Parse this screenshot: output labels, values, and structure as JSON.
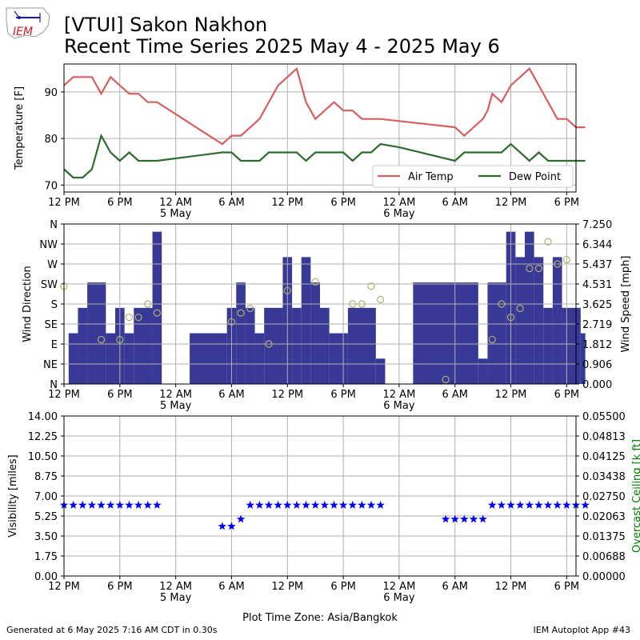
{
  "header": {
    "logo_text": "IEM",
    "title_line1": "[VTUI] Sakon Nakhon",
    "title_line2": "Recent Time Series 2025 May 4 - 2025 May 6"
  },
  "footer": {
    "generated": "Generated at 6 May 2025 7:16 AM CDT in 0.30s",
    "app": "IEM Autoplot App #43"
  },
  "colors": {
    "air_temp": "#d65f5f",
    "dew_point": "#2e6b2e",
    "wind_speed_bar": "#383896",
    "wind_dir_marker": "#b0b070",
    "visibility_marker": "#0000ff",
    "ceiling_axis": "#008000",
    "grid": "#b0b0b0"
  },
  "chart_data": [
    {
      "type": "line",
      "id": "temperature",
      "xlabel": "",
      "ylabel": "Temperature [F]",
      "x_tick_labels": [
        "12 PM",
        "6 PM",
        "12 AM",
        "6 AM",
        "12 PM",
        "6 PM",
        "12 AM",
        "6 AM",
        "12 PM",
        "6 PM"
      ],
      "x_date_labels": [
        {
          "tick": "12 AM",
          "index": 2,
          "label": "5 May"
        },
        {
          "tick": "12 AM",
          "index": 6,
          "label": "6 May"
        }
      ],
      "x_range_hours": [
        0,
        55
      ],
      "x_unit_note": "hours after 2025-05-04 12 PM",
      "ylim": [
        68.5,
        96
      ],
      "y_ticks": [
        70,
        80,
        90
      ],
      "grid": true,
      "legend": {
        "placement": "bottom-right",
        "columns": 2
      },
      "series": [
        {
          "name": "Air Temp",
          "points": [
            [
              0,
              91.4
            ],
            [
              1,
              93.2
            ],
            [
              2,
              93.2
            ],
            [
              3,
              93.2
            ],
            [
              4,
              89.6
            ],
            [
              5,
              93.2
            ],
            [
              6,
              91.4
            ],
            [
              7,
              89.6
            ],
            [
              8,
              89.6
            ],
            [
              9,
              87.8
            ],
            [
              10,
              87.8
            ],
            [
              17,
              78.8
            ],
            [
              18,
              80.6
            ],
            [
              19,
              80.6
            ],
            [
              21,
              84.2
            ],
            [
              23,
              91.4
            ],
            [
              25,
              95.0
            ],
            [
              26,
              87.8
            ],
            [
              27,
              84.2
            ],
            [
              29,
              87.8
            ],
            [
              30,
              86.0
            ],
            [
              31,
              86.0
            ],
            [
              32,
              84.2
            ],
            [
              34,
              84.2
            ],
            [
              42,
              82.4
            ],
            [
              43,
              80.6
            ],
            [
              44,
              82.4
            ],
            [
              45,
              84.2
            ],
            [
              45.5,
              86.0
            ],
            [
              46,
              89.6
            ],
            [
              47,
              87.8
            ],
            [
              48,
              91.4
            ],
            [
              50,
              95.0
            ],
            [
              52,
              87.8
            ],
            [
              53,
              84.2
            ],
            [
              54,
              84.2
            ],
            [
              55,
              82.4
            ],
            [
              56,
              82.4
            ]
          ]
        },
        {
          "name": "Dew Point",
          "points": [
            [
              0,
              73.4
            ],
            [
              1,
              71.6
            ],
            [
              2,
              71.6
            ],
            [
              3,
              73.4
            ],
            [
              4,
              80.6
            ],
            [
              5,
              77.0
            ],
            [
              6,
              75.2
            ],
            [
              7,
              77.0
            ],
            [
              8,
              75.2
            ],
            [
              10,
              75.2
            ],
            [
              17,
              77.0
            ],
            [
              18,
              77.0
            ],
            [
              19,
              75.2
            ],
            [
              21,
              75.2
            ],
            [
              22,
              77.0
            ],
            [
              25,
              77.0
            ],
            [
              26,
              75.2
            ],
            [
              27,
              77.0
            ],
            [
              30,
              77.0
            ],
            [
              31,
              75.2
            ],
            [
              32,
              77.0
            ],
            [
              33,
              77.0
            ],
            [
              34,
              78.8
            ],
            [
              36,
              78.1
            ],
            [
              42,
              75.2
            ],
            [
              43,
              77.0
            ],
            [
              47,
              77.0
            ],
            [
              48,
              78.8
            ],
            [
              50,
              75.2
            ],
            [
              51,
              77.0
            ],
            [
              52,
              75.2
            ],
            [
              56,
              75.2
            ]
          ]
        }
      ]
    },
    {
      "type": "bar",
      "id": "wind",
      "xlabel": "",
      "ylabel": "Wind Direction",
      "y2label": "Wind Speed [mph]",
      "x_tick_labels": [
        "12 PM",
        "6 PM",
        "12 AM",
        "6 AM",
        "12 PM",
        "6 PM",
        "12 AM",
        "6 AM",
        "12 PM",
        "6 PM"
      ],
      "x_date_labels": [
        {
          "tick": "12 AM",
          "index": 2,
          "label": "5 May"
        },
        {
          "tick": "12 AM",
          "index": 6,
          "label": "6 May"
        }
      ],
      "y_dir_ticks": [
        "N",
        "NE",
        "E",
        "SE",
        "S",
        "SW",
        "W",
        "NW",
        "N"
      ],
      "y_dir_range": [
        0,
        360
      ],
      "y2_ticks": [
        "0.000",
        "0.906",
        "1.812",
        "2.719",
        "3.625",
        "4.531",
        "5.437",
        "6.344",
        "7.250"
      ],
      "y2_range": [
        0,
        7.25
      ],
      "grid": true,
      "speed_bars": [
        {
          "start": 0.5,
          "end": 1.5,
          "value": 2.3
        },
        {
          "start": 1.5,
          "end": 2.5,
          "value": 3.45
        },
        {
          "start": 2.5,
          "end": 4.5,
          "value": 4.6
        },
        {
          "start": 4.5,
          "end": 5.5,
          "value": 2.3
        },
        {
          "start": 5.5,
          "end": 6.5,
          "value": 3.45
        },
        {
          "start": 6.5,
          "end": 7.5,
          "value": 2.3
        },
        {
          "start": 7.5,
          "end": 9.5,
          "value": 3.45
        },
        {
          "start": 9.5,
          "end": 10.5,
          "value": 6.9
        },
        {
          "start": 13.5,
          "end": 17.5,
          "value": 2.3
        },
        {
          "start": 17.5,
          "end": 18.5,
          "value": 3.45
        },
        {
          "start": 18.5,
          "end": 19.5,
          "value": 4.6
        },
        {
          "start": 19.5,
          "end": 20.5,
          "value": 3.45
        },
        {
          "start": 20.5,
          "end": 21.5,
          "value": 2.3
        },
        {
          "start": 21.5,
          "end": 23.5,
          "value": 3.45
        },
        {
          "start": 23.5,
          "end": 24.5,
          "value": 5.75
        },
        {
          "start": 24.5,
          "end": 25.5,
          "value": 3.45
        },
        {
          "start": 25.5,
          "end": 26.5,
          "value": 5.75
        },
        {
          "start": 26.5,
          "end": 27.5,
          "value": 4.6
        },
        {
          "start": 27.5,
          "end": 28.5,
          "value": 3.45
        },
        {
          "start": 28.5,
          "end": 30.5,
          "value": 2.3
        },
        {
          "start": 30.5,
          "end": 33.5,
          "value": 3.45
        },
        {
          "start": 33.5,
          "end": 34.5,
          "value": 1.15
        },
        {
          "start": 37.5,
          "end": 44.5,
          "value": 4.6
        },
        {
          "start": 44.5,
          "end": 45.5,
          "value": 1.15
        },
        {
          "start": 45.5,
          "end": 47.5,
          "value": 4.6
        },
        {
          "start": 47.5,
          "end": 48.5,
          "value": 6.9
        },
        {
          "start": 48.5,
          "end": 49.5,
          "value": 5.75
        },
        {
          "start": 49.5,
          "end": 50.5,
          "value": 6.9
        },
        {
          "start": 50.5,
          "end": 51.5,
          "value": 5.75
        },
        {
          "start": 51.5,
          "end": 52.5,
          "value": 3.45
        },
        {
          "start": 52.5,
          "end": 53.5,
          "value": 5.75
        },
        {
          "start": 53.5,
          "end": 55.5,
          "value": 3.45
        },
        {
          "start": 55.5,
          "end": 56,
          "value": 2.3
        }
      ],
      "direction_points": [
        [
          0,
          220
        ],
        [
          4,
          100
        ],
        [
          6,
          100
        ],
        [
          7,
          150
        ],
        [
          8,
          150
        ],
        [
          9,
          180
        ],
        [
          10,
          160
        ],
        [
          18,
          140
        ],
        [
          19,
          160
        ],
        [
          20,
          170
        ],
        [
          22,
          90
        ],
        [
          24,
          210
        ],
        [
          27,
          230
        ],
        [
          31,
          180
        ],
        [
          32,
          180
        ],
        [
          33,
          220
        ],
        [
          34,
          190
        ],
        [
          41,
          10
        ],
        [
          46,
          100
        ],
        [
          47,
          180
        ],
        [
          48,
          150
        ],
        [
          49,
          170
        ],
        [
          50,
          260
        ],
        [
          51,
          260
        ],
        [
          52,
          320
        ],
        [
          53,
          270
        ],
        [
          54,
          280
        ]
      ]
    },
    {
      "type": "scatter",
      "id": "visibility",
      "xlabel": "Plot Time Zone: Asia/Bangkok",
      "ylabel": "Visibility [miles]",
      "y2label": "Overcast Ceiling [k ft]",
      "x_tick_labels": [
        "12 PM",
        "6 PM",
        "12 AM",
        "6 AM",
        "12 PM",
        "6 PM",
        "12 AM",
        "6 AM",
        "12 PM",
        "6 PM"
      ],
      "x_date_labels": [
        {
          "tick": "12 AM",
          "index": 2,
          "label": "5 May"
        },
        {
          "tick": "12 AM",
          "index": 6,
          "label": "6 May"
        }
      ],
      "y_ticks": [
        "0.00",
        "1.75",
        "3.50",
        "5.25",
        "7.00",
        "8.75",
        "10.50",
        "12.25",
        "14.00"
      ],
      "ylim": [
        0,
        14
      ],
      "y2_ticks": [
        "0.00000",
        "0.00688",
        "0.01375",
        "0.02063",
        "0.02750",
        "0.03438",
        "0.04125",
        "0.04813",
        "0.05500"
      ],
      "y2lim": [
        0,
        0.055
      ],
      "grid": true,
      "points": [
        [
          0,
          6.2
        ],
        [
          1,
          6.2
        ],
        [
          2,
          6.2
        ],
        [
          3,
          6.2
        ],
        [
          4,
          6.2
        ],
        [
          5,
          6.2
        ],
        [
          6,
          6.2
        ],
        [
          7,
          6.2
        ],
        [
          8,
          6.2
        ],
        [
          9,
          6.2
        ],
        [
          10,
          6.2
        ],
        [
          17,
          4.35
        ],
        [
          18,
          4.35
        ],
        [
          19,
          4.97
        ],
        [
          20,
          6.2
        ],
        [
          21,
          6.2
        ],
        [
          22,
          6.2
        ],
        [
          23,
          6.2
        ],
        [
          24,
          6.2
        ],
        [
          25,
          6.2
        ],
        [
          26,
          6.2
        ],
        [
          27,
          6.2
        ],
        [
          28,
          6.2
        ],
        [
          29,
          6.2
        ],
        [
          30,
          6.2
        ],
        [
          31,
          6.2
        ],
        [
          32,
          6.2
        ],
        [
          33,
          6.2
        ],
        [
          34,
          6.2
        ],
        [
          41,
          4.97
        ],
        [
          42,
          4.97
        ],
        [
          43,
          4.97
        ],
        [
          44,
          4.97
        ],
        [
          45,
          4.97
        ],
        [
          46,
          6.2
        ],
        [
          47,
          6.2
        ],
        [
          48,
          6.2
        ],
        [
          49,
          6.2
        ],
        [
          50,
          6.2
        ],
        [
          51,
          6.2
        ],
        [
          52,
          6.2
        ],
        [
          53,
          6.2
        ],
        [
          54,
          6.2
        ],
        [
          55,
          6.2
        ],
        [
          56,
          6.2
        ]
      ]
    }
  ]
}
